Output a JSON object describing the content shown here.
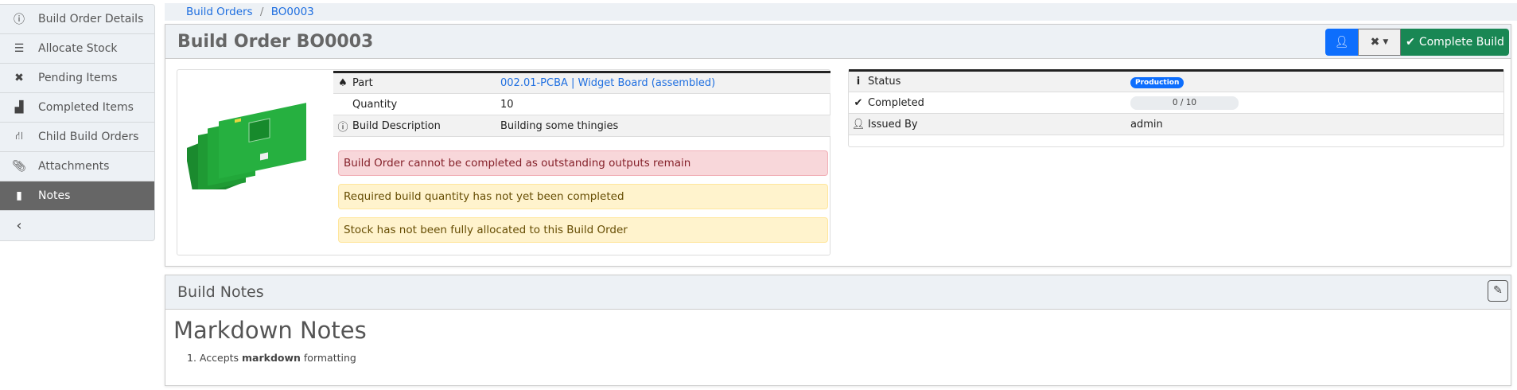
{
  "sidebar": {
    "items": [
      {
        "label": "Build Order Details",
        "icon": "info-circle-icon"
      },
      {
        "label": "Allocate Stock",
        "icon": "list-check-icon"
      },
      {
        "label": "Pending Items",
        "icon": "tools-icon"
      },
      {
        "label": "Completed Items",
        "icon": "boxes-icon"
      },
      {
        "label": "Child Build Orders",
        "icon": "sitemap-icon"
      },
      {
        "label": "Attachments",
        "icon": "paperclip-icon"
      },
      {
        "label": "Notes",
        "icon": "clipboard-icon",
        "active": true
      }
    ],
    "collapse_icon": "chevron-left-icon"
  },
  "breadcrumb": {
    "items": [
      "Build Orders",
      "BO0003"
    ],
    "separator": "/"
  },
  "header": {
    "title": "Build Order BO0003",
    "complete_label": "Complete Build",
    "colors": {
      "primary": "#0d6efd",
      "success": "#198754"
    }
  },
  "details": {
    "rows": [
      {
        "label": "Part",
        "value": "002.01-PCBA | Widget Board (assembled)",
        "icon": "shapes-icon"
      },
      {
        "label": "Quantity",
        "value": "10"
      },
      {
        "label": "Build Description",
        "value": "Building some thingies",
        "icon": "info-circle-icon"
      }
    ],
    "alerts": [
      {
        "text": "Build Order cannot be completed as outstanding outputs remain",
        "type": "danger"
      },
      {
        "text": "Required build quantity has not yet been completed",
        "type": "warning"
      },
      {
        "text": "Stock has not been fully allocated to this Build Order",
        "type": "warning"
      }
    ]
  },
  "status": {
    "rows": [
      {
        "label": "Status",
        "badge": "Production",
        "icon": "info-icon"
      },
      {
        "label": "Completed",
        "progress": "0 / 10",
        "completed": 0,
        "total": 10,
        "icon": "check-circle-icon"
      },
      {
        "label": "Issued By",
        "value": "admin",
        "icon": "user-icon"
      }
    ]
  },
  "notes": {
    "title": "Build Notes",
    "heading": "Markdown Notes",
    "item_pre": "Accepts ",
    "item_bold": "markdown",
    "item_post": " formatting",
    "item_num": "1."
  }
}
